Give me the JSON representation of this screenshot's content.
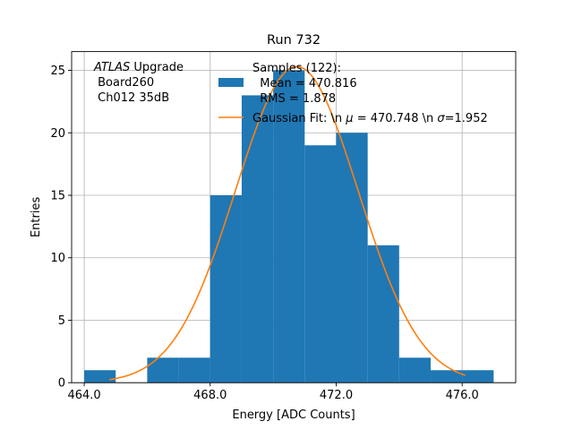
{
  "chart_data": {
    "type": "bar",
    "title": "Run 732",
    "xlabel": "Energy [ADC Counts]",
    "ylabel": "Entries",
    "xlim": [
      463.6,
      477.7
    ],
    "ylim": [
      0,
      26.5
    ],
    "xticks": [
      464.0,
      468.0,
      472.0,
      476.0
    ],
    "xtick_labels": [
      "464.0",
      "468.0",
      "472.0",
      "476.0"
    ],
    "yticks": [
      0,
      5,
      10,
      15,
      20,
      25
    ],
    "ytick_labels": [
      "0",
      "5",
      "10",
      "15",
      "20",
      "25"
    ],
    "grid": true,
    "legend_placement": "top-right",
    "histogram": {
      "name": "Samples (122):\n Mean = 470.816\n RMS = 1.878",
      "color": "#1f77b4",
      "bins": [
        {
          "x0": 464,
          "x1": 465,
          "count": 1
        },
        {
          "x0": 465,
          "x1": 466,
          "count": 0
        },
        {
          "x0": 466,
          "x1": 467,
          "count": 2
        },
        {
          "x0": 467,
          "x1": 468,
          "count": 2
        },
        {
          "x0": 468,
          "x1": 469,
          "count": 15
        },
        {
          "x0": 469,
          "x1": 470,
          "count": 23
        },
        {
          "x0": 470,
          "x1": 471,
          "count": 25
        },
        {
          "x0": 471,
          "x1": 472,
          "count": 19
        },
        {
          "x0": 472,
          "x1": 473,
          "count": 20
        },
        {
          "x0": 473,
          "x1": 474,
          "count": 11
        },
        {
          "x0": 474,
          "x1": 475,
          "count": 2
        },
        {
          "x0": 475,
          "x1": 476,
          "count": 1
        },
        {
          "x0": 476,
          "x1": 477,
          "count": 1
        }
      ]
    },
    "fit": {
      "name": "Gaussian Fit: \\n $\\mu$ = 470.748 \\n $\\sigma$=1.952",
      "color": "#ff7f0e",
      "mu": 470.748,
      "sigma": 1.952,
      "amplitude": 25.3,
      "x_range": [
        464.8,
        476.1
      ]
    },
    "annotation": {
      "italic": "ATLAS",
      "rest": " Upgrade",
      "lines": [
        " Board260",
        " Ch012 35dB"
      ]
    },
    "legend": {
      "samples_lines": [
        "Samples (122):",
        "  Mean = 470.816",
        "  RMS = 1.878"
      ],
      "fit_prefix": "Gaussian Fit: \\n ",
      "fit_mu_sym": "μ",
      "fit_mid": " = 470.748 \\n ",
      "fit_sigma_sym": "σ",
      "fit_suffix": "=1.952"
    }
  }
}
